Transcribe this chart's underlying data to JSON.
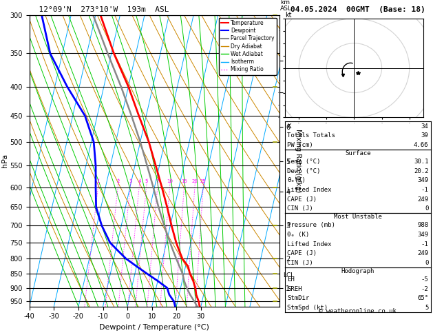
{
  "title_left": "12°09'N  273°10'W  193m  ASL",
  "title_right": "04.05.2024  00GMT  (Base: 18)",
  "xlabel": "Dewpoint / Temperature (°C)",
  "credit": "© weatheronline.co.uk",
  "p_levels": [
    300,
    350,
    400,
    450,
    500,
    550,
    600,
    650,
    700,
    750,
    800,
    850,
    900,
    950
  ],
  "p_min": 300,
  "p_max": 970,
  "T_min": -40,
  "T_max": 35,
  "temp_profile_p": [
    988,
    970,
    950,
    925,
    900,
    875,
    850,
    825,
    800,
    775,
    750,
    700,
    650,
    600,
    550,
    500,
    450,
    400,
    350,
    300
  ],
  "temp_profile_T": [
    30.1,
    29.5,
    28.6,
    27.0,
    26.0,
    24.5,
    22.5,
    21.0,
    18.0,
    16.0,
    14.0,
    10.5,
    7.0,
    3.0,
    -1.5,
    -6.5,
    -13.0,
    -20.0,
    -29.0,
    -38.0
  ],
  "dewp_profile_p": [
    988,
    970,
    950,
    925,
    900,
    875,
    850,
    825,
    800,
    775,
    750,
    700,
    650,
    600,
    550,
    500,
    450,
    400,
    350,
    300
  ],
  "dewp_profile_T": [
    20.2,
    19.5,
    18.5,
    16.0,
    14.5,
    10.0,
    5.0,
    0.0,
    -5.0,
    -9.0,
    -13.0,
    -18.0,
    -22.0,
    -24.0,
    -26.0,
    -29.0,
    -35.0,
    -45.0,
    -55.0,
    -62.0
  ],
  "parcel_profile_p": [
    988,
    970,
    950,
    925,
    900,
    875,
    850,
    825,
    800,
    775,
    750,
    700,
    650,
    600,
    550,
    500,
    450,
    400,
    350,
    300
  ],
  "parcel_profile_T": [
    30.1,
    28.5,
    26.8,
    24.5,
    22.5,
    20.8,
    19.5,
    17.5,
    15.5,
    13.5,
    11.5,
    7.5,
    3.5,
    -0.5,
    -5.0,
    -10.0,
    -16.0,
    -23.0,
    -31.5,
    -41.0
  ],
  "LCL_p": 855,
  "km_ticks": [
    1,
    2,
    3,
    4,
    5,
    6,
    7,
    8
  ],
  "km_pressures": [
    900,
    800,
    700,
    610,
    540,
    470,
    410,
    360
  ],
  "mixing_ratio_values": [
    1,
    2,
    3,
    4,
    5,
    7,
    10,
    15,
    20,
    25
  ],
  "colors": {
    "temperature": "#ff0000",
    "dewpoint": "#0000ff",
    "parcel": "#888888",
    "dry_adiabat": "#cc8800",
    "wet_adiabat": "#00cc00",
    "isotherm": "#00aaff",
    "mixing_ratio": "#ff00ff",
    "background": "#ffffff",
    "wind_barb": "#aaaa00"
  },
  "hodograph_data": {
    "K": 34,
    "Totals_Totals": 39,
    "PW_cm": 4.66,
    "Surface_Temp": 30.1,
    "Surface_Dewp": 20.2,
    "Surface_thetae": 349,
    "Surface_LI": -1,
    "Surface_CAPE": 249,
    "Surface_CIN": 0,
    "MU_Pressure": 988,
    "MU_thetae": 349,
    "MU_LI": -1,
    "MU_CAPE": 249,
    "MU_CIN": 0,
    "EH": -5,
    "SREH": -2,
    "StmDir": 65,
    "StmSpd": 5
  }
}
